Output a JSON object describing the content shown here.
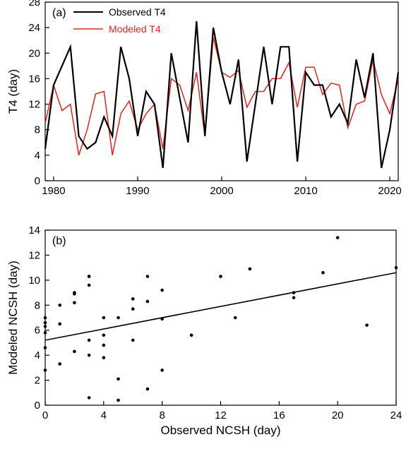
{
  "chart_data": [
    {
      "type": "line",
      "panel_label": "(a)",
      "title": "",
      "xlabel": "",
      "ylabel": "T4 (day)",
      "xlim": [
        1979,
        2021
      ],
      "ylim": [
        0,
        28
      ],
      "xticks": [
        1980,
        1990,
        2000,
        2010,
        2020
      ],
      "yticks": [
        0,
        4,
        8,
        12,
        16,
        20,
        24,
        28
      ],
      "grid": false,
      "legend_position": "top-left",
      "x": [
        1979,
        1980,
        1981,
        1982,
        1983,
        1984,
        1985,
        1986,
        1987,
        1988,
        1989,
        1990,
        1991,
        1992,
        1993,
        1994,
        1995,
        1996,
        1997,
        1998,
        1999,
        2000,
        2001,
        2002,
        2003,
        2004,
        2005,
        2006,
        2007,
        2008,
        2009,
        2010,
        2011,
        2012,
        2013,
        2014,
        2015,
        2016,
        2017,
        2018,
        2019,
        2020,
        2021
      ],
      "series": [
        {
          "name": "Observed T4",
          "color": "#000000",
          "values": [
            5,
            15,
            18,
            21,
            7,
            5,
            6,
            10,
            7,
            21,
            16,
            7,
            14,
            12,
            2,
            20,
            13,
            6,
            25,
            7,
            24,
            17,
            12,
            19,
            3,
            12,
            21,
            12,
            21,
            21,
            3,
            17,
            15,
            15,
            10,
            12,
            9,
            19,
            13,
            20,
            2,
            8,
            17
          ]
        },
        {
          "name": "Modeled T4",
          "color": "#e8211c",
          "values": [
            9,
            15,
            11,
            12,
            4,
            8,
            13.6,
            14,
            4,
            10.5,
            12.5,
            8,
            10.5,
            12,
            5,
            16,
            15,
            11,
            17,
            7,
            22.5,
            17,
            16.2,
            17.3,
            11.5,
            14,
            14,
            16,
            16,
            18.5,
            11.5,
            17.8,
            17.8,
            13.5,
            15.3,
            15,
            8.3,
            12,
            12.5,
            19,
            13.5,
            10.5,
            16
          ]
        }
      ]
    },
    {
      "type": "scatter",
      "panel_label": "(b)",
      "title": "",
      "xlabel": "Observed NCSH (day)",
      "ylabel": "Modeled NCSH (day)",
      "xlim": [
        0,
        24
      ],
      "ylim": [
        0,
        14
      ],
      "xticks": [
        0,
        4,
        8,
        12,
        16,
        20,
        24
      ],
      "yticks": [
        0,
        2,
        4,
        6,
        8,
        10,
        12,
        14
      ],
      "grid": false,
      "points_x": [
        0,
        0,
        0,
        0,
        0,
        0,
        1,
        1,
        1,
        2,
        2,
        2,
        2,
        3,
        3,
        3,
        3,
        3,
        3,
        4,
        4,
        4,
        4,
        5,
        5,
        5,
        6,
        6,
        6,
        7,
        7,
        7,
        8,
        8,
        8,
        10,
        12,
        13,
        14,
        17,
        17,
        19,
        20,
        22,
        24
      ],
      "points_y": [
        2.8,
        4.6,
        5.8,
        6.3,
        6.6,
        7.0,
        3.3,
        6.5,
        8.0,
        4.3,
        8.2,
        8.9,
        9.0,
        0.6,
        4.0,
        5.2,
        9.6,
        10.3,
        10.3,
        3.8,
        4.8,
        5.6,
        7.0,
        0.4,
        2.1,
        7.0,
        5.2,
        7.7,
        8.5,
        1.3,
        8.3,
        10.3,
        2.8,
        6.9,
        9.2,
        5.6,
        10.3,
        7.0,
        10.9,
        8.6,
        9.0,
        10.6,
        13.4,
        6.4,
        11.0
      ],
      "fit_line": {
        "x": [
          0,
          24
        ],
        "y": [
          5.2,
          10.6
        ],
        "color": "#000000"
      }
    }
  ]
}
